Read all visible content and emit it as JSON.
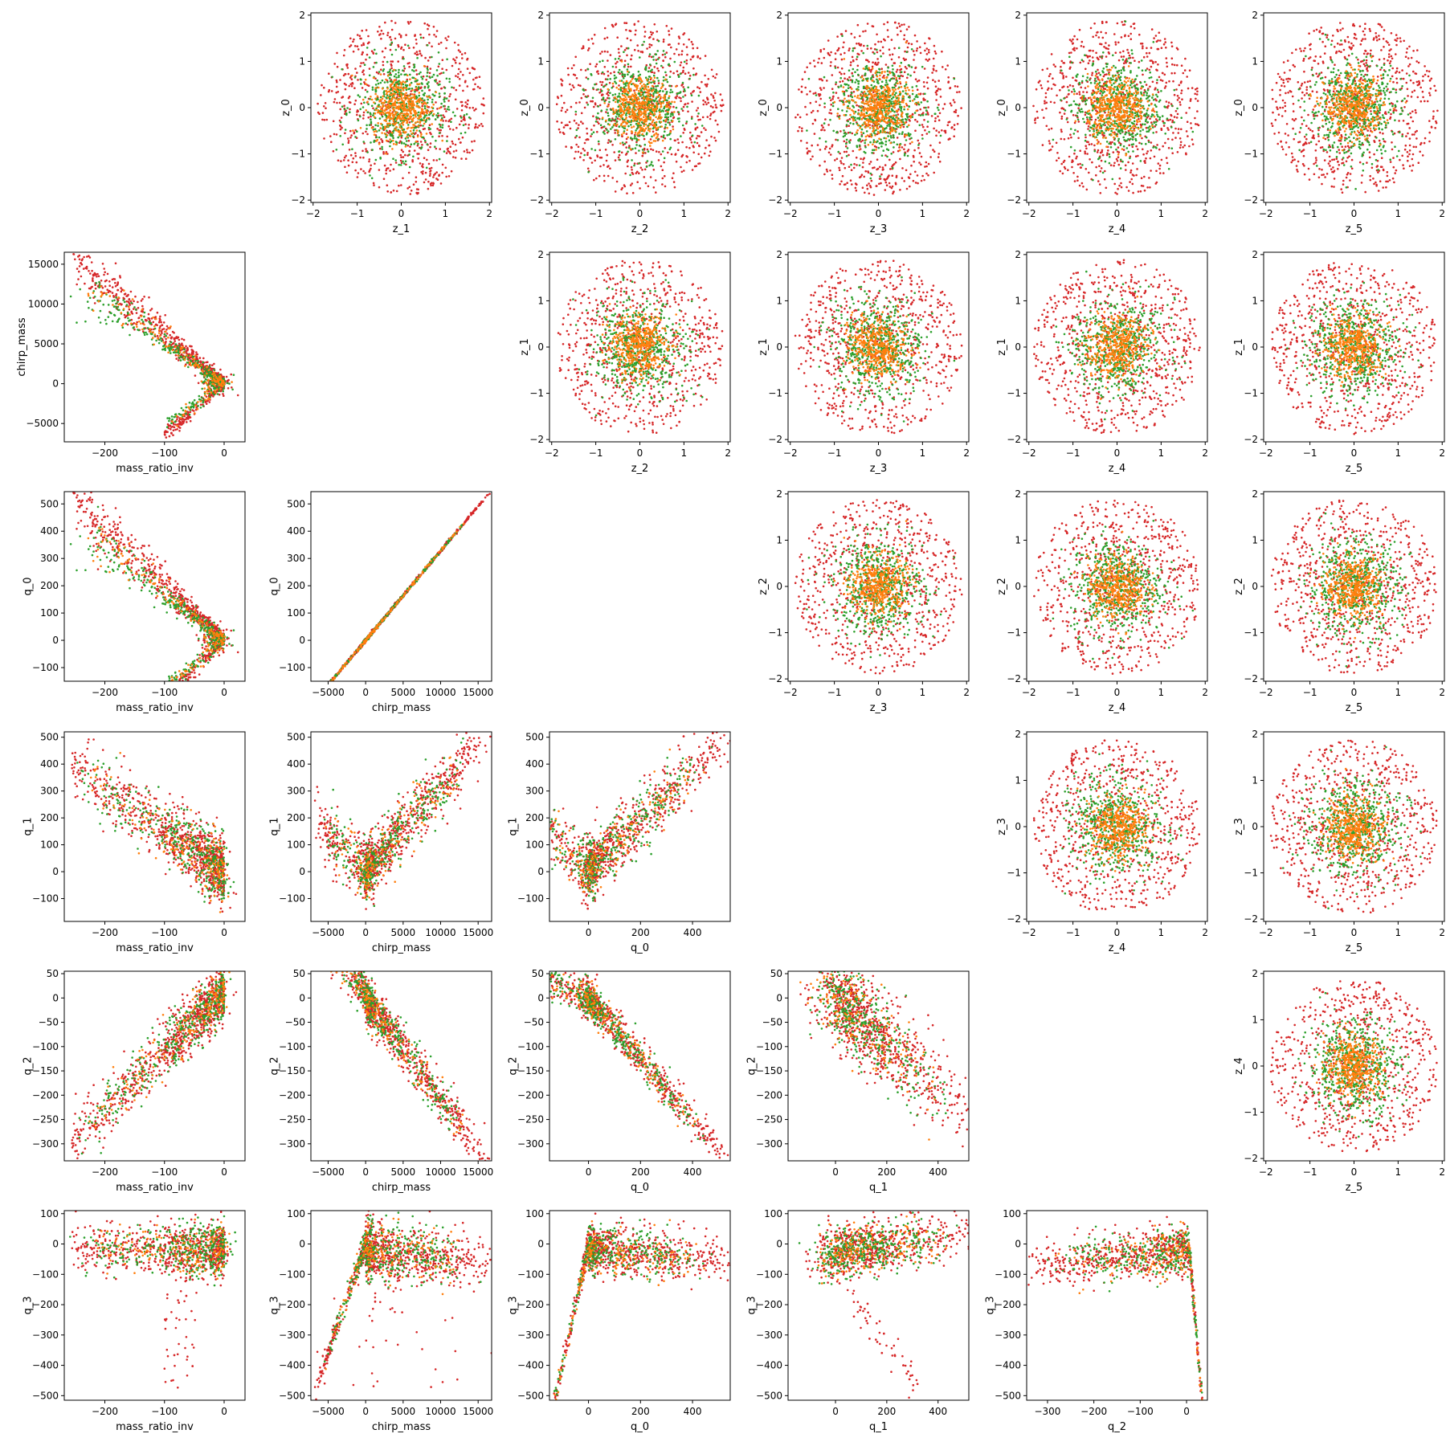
{
  "chart_data": {
    "type": "scatter",
    "figure": "pairwise scatter matrix",
    "colors": {
      "green": "#2ca02c",
      "orange": "#ff7f0e",
      "red": "#d62728"
    },
    "legend": "none",
    "grid": false,
    "seed_note": "",
    "panels": [
      {
        "row": 0,
        "col": 1,
        "x": "z_1",
        "y": "z_0",
        "type": "iso",
        "xlim": [
          -2.05,
          2.05
        ],
        "ylim": [
          -2.05,
          2.05
        ],
        "xticks": [
          -2,
          -1,
          0,
          1,
          2
        ],
        "yticks": [
          -2,
          -1,
          0,
          1,
          2
        ]
      },
      {
        "row": 0,
        "col": 2,
        "x": "z_2",
        "y": "z_0",
        "type": "iso",
        "xlim": [
          -2.05,
          2.05
        ],
        "ylim": [
          -2.05,
          2.05
        ],
        "xticks": [
          -2,
          -1,
          0,
          1,
          2
        ],
        "yticks": [
          -2,
          -1,
          0,
          1,
          2
        ]
      },
      {
        "row": 0,
        "col": 3,
        "x": "z_3",
        "y": "z_0",
        "type": "iso",
        "xlim": [
          -2.05,
          2.05
        ],
        "ylim": [
          -2.05,
          2.05
        ],
        "xticks": [
          -2,
          -1,
          0,
          1,
          2
        ],
        "yticks": [
          -2,
          -1,
          0,
          1,
          2
        ]
      },
      {
        "row": 0,
        "col": 4,
        "x": "z_4",
        "y": "z_0",
        "type": "iso",
        "xlim": [
          -2.05,
          2.05
        ],
        "ylim": [
          -2.05,
          2.05
        ],
        "xticks": [
          -2,
          -1,
          0,
          1,
          2
        ],
        "yticks": [
          -2,
          -1,
          0,
          1,
          2
        ]
      },
      {
        "row": 0,
        "col": 5,
        "x": "z_5",
        "y": "z_0",
        "type": "iso",
        "xlim": [
          -2.05,
          2.05
        ],
        "ylim": [
          -2.05,
          2.05
        ],
        "xticks": [
          -2,
          -1,
          0,
          1,
          2
        ],
        "yticks": [
          -2,
          -1,
          0,
          1,
          2
        ]
      },
      {
        "row": 1,
        "col": 0,
        "x": "mass_ratio_inv",
        "y": "chirp_mass",
        "type": "mr_cm",
        "xlim": [
          -268,
          35
        ],
        "ylim": [
          -7300,
          16500
        ],
        "xticks": [
          -200,
          -100,
          0
        ],
        "yticks": [
          -5000,
          0,
          5000,
          10000,
          15000
        ]
      },
      {
        "row": 1,
        "col": 2,
        "x": "z_2",
        "y": "z_1",
        "type": "iso",
        "xlim": [
          -2.05,
          2.05
        ],
        "ylim": [
          -2.05,
          2.05
        ],
        "xticks": [
          -2,
          -1,
          0,
          1,
          2
        ],
        "yticks": [
          -2,
          -1,
          0,
          1,
          2
        ]
      },
      {
        "row": 1,
        "col": 3,
        "x": "z_3",
        "y": "z_1",
        "type": "iso",
        "xlim": [
          -2.05,
          2.05
        ],
        "ylim": [
          -2.05,
          2.05
        ],
        "xticks": [
          -2,
          -1,
          0,
          1,
          2
        ],
        "yticks": [
          -2,
          -1,
          0,
          1,
          2
        ]
      },
      {
        "row": 1,
        "col": 4,
        "x": "z_4",
        "y": "z_1",
        "type": "iso",
        "xlim": [
          -2.05,
          2.05
        ],
        "ylim": [
          -2.05,
          2.05
        ],
        "xticks": [
          -2,
          -1,
          0,
          1,
          2
        ],
        "yticks": [
          -2,
          -1,
          0,
          1,
          2
        ]
      },
      {
        "row": 1,
        "col": 5,
        "x": "z_5",
        "y": "z_1",
        "type": "iso",
        "xlim": [
          -2.05,
          2.05
        ],
        "ylim": [
          -2.05,
          2.05
        ],
        "xticks": [
          -2,
          -1,
          0,
          1,
          2
        ],
        "yticks": [
          -2,
          -1,
          0,
          1,
          2
        ]
      },
      {
        "row": 2,
        "col": 0,
        "x": "mass_ratio_inv",
        "y": "q_0",
        "type": "mr_q0",
        "xlim": [
          -268,
          35
        ],
        "ylim": [
          -150,
          545
        ],
        "xticks": [
          -200,
          -100,
          0
        ],
        "yticks": [
          -100,
          0,
          100,
          200,
          300,
          400,
          500
        ]
      },
      {
        "row": 2,
        "col": 1,
        "x": "chirp_mass",
        "y": "q_0",
        "type": "cm_q0",
        "xlim": [
          -7300,
          16800
        ],
        "ylim": [
          -150,
          545
        ],
        "xticks": [
          -5000,
          0,
          5000,
          10000,
          15000
        ],
        "yticks": [
          -100,
          0,
          100,
          200,
          300,
          400,
          500
        ]
      },
      {
        "row": 2,
        "col": 3,
        "x": "z_3",
        "y": "z_2",
        "type": "iso",
        "xlim": [
          -2.05,
          2.05
        ],
        "ylim": [
          -2.05,
          2.05
        ],
        "xticks": [
          -2,
          -1,
          0,
          1,
          2
        ],
        "yticks": [
          -2,
          -1,
          0,
          1,
          2
        ]
      },
      {
        "row": 2,
        "col": 4,
        "x": "z_4",
        "y": "z_2",
        "type": "iso",
        "xlim": [
          -2.05,
          2.05
        ],
        "ylim": [
          -2.05,
          2.05
        ],
        "xticks": [
          -2,
          -1,
          0,
          1,
          2
        ],
        "yticks": [
          -2,
          -1,
          0,
          1,
          2
        ]
      },
      {
        "row": 2,
        "col": 5,
        "x": "z_5",
        "y": "z_2",
        "type": "iso",
        "xlim": [
          -2.05,
          2.05
        ],
        "ylim": [
          -2.05,
          2.05
        ],
        "xticks": [
          -2,
          -1,
          0,
          1,
          2
        ],
        "yticks": [
          -2,
          -1,
          0,
          1,
          2
        ]
      },
      {
        "row": 3,
        "col": 0,
        "x": "mass_ratio_inv",
        "y": "q_1",
        "type": "mr_q1",
        "xlim": [
          -268,
          35
        ],
        "ylim": [
          -185,
          520
        ],
        "xticks": [
          -200,
          -100,
          0
        ],
        "yticks": [
          -100,
          0,
          100,
          200,
          300,
          400,
          500
        ]
      },
      {
        "row": 3,
        "col": 1,
        "x": "chirp_mass",
        "y": "q_1",
        "type": "cm_q1",
        "xlim": [
          -7300,
          16800
        ],
        "ylim": [
          -185,
          520
        ],
        "xticks": [
          -5000,
          0,
          5000,
          10000,
          15000
        ],
        "yticks": [
          -100,
          0,
          100,
          200,
          300,
          400,
          500
        ]
      },
      {
        "row": 3,
        "col": 2,
        "x": "q_0",
        "y": "q_1",
        "type": "q0_q1",
        "xlim": [
          -150,
          545
        ],
        "ylim": [
          -185,
          520
        ],
        "xticks": [
          0,
          200,
          400
        ],
        "yticks": [
          -100,
          0,
          100,
          200,
          300,
          400,
          500
        ]
      },
      {
        "row": 3,
        "col": 4,
        "x": "z_4",
        "y": "z_3",
        "type": "iso",
        "xlim": [
          -2.05,
          2.05
        ],
        "ylim": [
          -2.05,
          2.05
        ],
        "xticks": [
          -2,
          -1,
          0,
          1,
          2
        ],
        "yticks": [
          -2,
          -1,
          0,
          1,
          2
        ]
      },
      {
        "row": 3,
        "col": 5,
        "x": "z_5",
        "y": "z_3",
        "type": "iso",
        "xlim": [
          -2.05,
          2.05
        ],
        "ylim": [
          -2.05,
          2.05
        ],
        "xticks": [
          -2,
          -1,
          0,
          1,
          2
        ],
        "yticks": [
          -2,
          -1,
          0,
          1,
          2
        ]
      },
      {
        "row": 4,
        "col": 0,
        "x": "mass_ratio_inv",
        "y": "q_2",
        "type": "mr_q2",
        "xlim": [
          -268,
          35
        ],
        "ylim": [
          -335,
          55
        ],
        "xticks": [
          -200,
          -100,
          0
        ],
        "yticks": [
          -300,
          -250,
          -200,
          -150,
          -100,
          -50,
          0,
          50
        ]
      },
      {
        "row": 4,
        "col": 1,
        "x": "chirp_mass",
        "y": "q_2",
        "type": "cm_q2",
        "xlim": [
          -7300,
          16800
        ],
        "ylim": [
          -335,
          55
        ],
        "xticks": [
          -5000,
          0,
          5000,
          10000,
          15000
        ],
        "yticks": [
          -300,
          -250,
          -200,
          -150,
          -100,
          -50,
          0,
          50
        ]
      },
      {
        "row": 4,
        "col": 2,
        "x": "q_0",
        "y": "q_2",
        "type": "q0_q2",
        "xlim": [
          -150,
          545
        ],
        "ylim": [
          -335,
          55
        ],
        "xticks": [
          0,
          200,
          400
        ],
        "yticks": [
          -300,
          -250,
          -200,
          -150,
          -100,
          -50,
          0,
          50
        ]
      },
      {
        "row": 4,
        "col": 3,
        "x": "q_1",
        "y": "q_2",
        "type": "q1_q2",
        "xlim": [
          -185,
          520
        ],
        "ylim": [
          -335,
          55
        ],
        "xticks": [
          0,
          200,
          400
        ],
        "yticks": [
          -300,
          -250,
          -200,
          -150,
          -100,
          -50,
          0,
          50
        ]
      },
      {
        "row": 4,
        "col": 5,
        "x": "z_5",
        "y": "z_4",
        "type": "iso",
        "xlim": [
          -2.05,
          2.05
        ],
        "ylim": [
          -2.05,
          2.05
        ],
        "xticks": [
          -2,
          -1,
          0,
          1,
          2
        ],
        "yticks": [
          -2,
          -1,
          0,
          1,
          2
        ]
      },
      {
        "row": 5,
        "col": 0,
        "x": "mass_ratio_inv",
        "y": "q_3",
        "type": "mr_q3",
        "xlim": [
          -268,
          35
        ],
        "ylim": [
          -515,
          110
        ],
        "xticks": [
          -200,
          -100,
          0
        ],
        "yticks": [
          -500,
          -400,
          -300,
          -200,
          -100,
          0,
          100
        ]
      },
      {
        "row": 5,
        "col": 1,
        "x": "chirp_mass",
        "y": "q_3",
        "type": "cm_q3",
        "xlim": [
          -7300,
          16800
        ],
        "ylim": [
          -515,
          110
        ],
        "xticks": [
          -5000,
          0,
          5000,
          10000,
          15000
        ],
        "yticks": [
          -500,
          -400,
          -300,
          -200,
          -100,
          0,
          100
        ]
      },
      {
        "row": 5,
        "col": 2,
        "x": "q_0",
        "y": "q_3",
        "type": "q0_q3",
        "xlim": [
          -150,
          545
        ],
        "ylim": [
          -515,
          110
        ],
        "xticks": [
          0,
          200,
          400
        ],
        "yticks": [
          -500,
          -400,
          -300,
          -200,
          -100,
          0,
          100
        ]
      },
      {
        "row": 5,
        "col": 3,
        "x": "q_1",
        "y": "q_3",
        "type": "q1_q3",
        "xlim": [
          -185,
          520
        ],
        "ylim": [
          -515,
          110
        ],
        "xticks": [
          0,
          200,
          400
        ],
        "yticks": [
          -500,
          -400,
          -300,
          -200,
          -100,
          0,
          100
        ]
      },
      {
        "row": 5,
        "col": 4,
        "x": "q_2",
        "y": "q_3",
        "type": "q2_q3",
        "xlim": [
          -345,
          45
        ],
        "ylim": [
          -515,
          110
        ],
        "xticks": [
          -300,
          -200,
          -100,
          0
        ],
        "yticks": [
          -500,
          -400,
          -300,
          -200,
          -100,
          0,
          100
        ]
      }
    ]
  }
}
